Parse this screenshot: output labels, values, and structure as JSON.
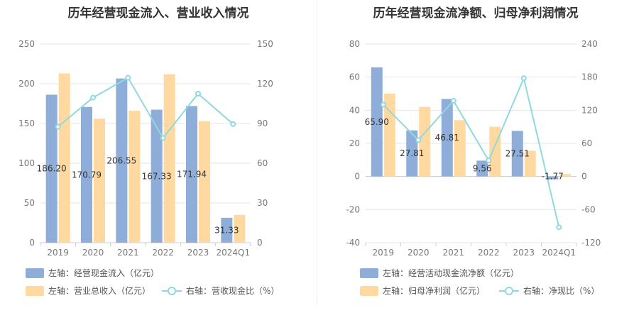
{
  "colors": {
    "bar1": "#8eadd9",
    "bar2": "#ffd9a0",
    "line": "#8fd9df",
    "grid": "#e6e6e6",
    "axis": "#cccccc"
  },
  "chart_data": [
    {
      "type": "bar",
      "title": "历年经营现金流入、营业收入情况",
      "categories": [
        "2019",
        "2020",
        "2021",
        "2022",
        "2023",
        "2024Q1"
      ],
      "yleft": {
        "min": 0,
        "max": 250,
        "ticks": [
          "0",
          "50",
          "100",
          "150",
          "200",
          "250"
        ]
      },
      "yright": {
        "min": 0,
        "max": 150,
        "ticks": [
          "0",
          "30",
          "60",
          "90",
          "120",
          "150"
        ]
      },
      "series": [
        {
          "name": "左轴：经营现金流入（亿元）",
          "axis": "left",
          "kind": "bar",
          "values": [
            186.2,
            170.79,
            206.55,
            167.33,
            171.94,
            31.33
          ],
          "labels": [
            "186.20",
            "170.79",
            "206.55",
            "167.33",
            "171.94",
            "31.33"
          ]
        },
        {
          "name": "左轴：营业总收入（亿元）",
          "axis": "left",
          "kind": "bar",
          "values": [
            213,
            156,
            166,
            212,
            153,
            35
          ]
        },
        {
          "name": "右轴：营收现金比（%）",
          "axis": "right",
          "kind": "line",
          "values": [
            87.5,
            109.5,
            124.5,
            79,
            112.5,
            89.5
          ]
        }
      ]
    },
    {
      "type": "bar",
      "title": "历年经营现金流净额、归母净利润情况",
      "categories": [
        "2019",
        "2020",
        "2021",
        "2022",
        "2023",
        "2024Q1"
      ],
      "yleft": {
        "min": -40,
        "max": 80,
        "ticks": [
          "-40",
          "-20",
          "0",
          "20",
          "40",
          "60",
          "80"
        ]
      },
      "yright": {
        "min": -120,
        "max": 240,
        "ticks": [
          "-120",
          "-60",
          "0",
          "60",
          "120",
          "180",
          "240"
        ]
      },
      "series": [
        {
          "name": "左轴：经营活动现金流净额（亿元）",
          "axis": "left",
          "kind": "bar",
          "values": [
            65.9,
            27.81,
            46.81,
            9.56,
            27.51,
            -1.77
          ],
          "labels": [
            "65.90",
            "27.81",
            "46.81",
            "9.56",
            "27.51",
            "-1.77"
          ]
        },
        {
          "name": "左轴：归母净利润（亿元）",
          "axis": "left",
          "kind": "bar",
          "values": [
            50,
            42,
            34,
            30,
            15.5,
            1.5
          ]
        },
        {
          "name": "右轴：净现比（%）",
          "axis": "right",
          "kind": "line",
          "values": [
            130,
            66,
            137,
            29,
            178,
            -92
          ]
        }
      ]
    }
  ]
}
